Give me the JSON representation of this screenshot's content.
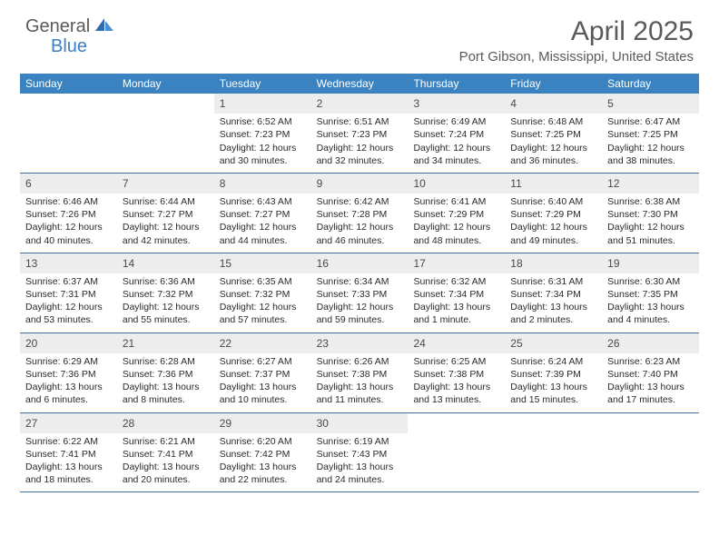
{
  "logo": {
    "part1": "General",
    "part2": "Blue"
  },
  "title": "April 2025",
  "location": "Port Gibson, Mississippi, United States",
  "colors": {
    "header_bar": "#3b83c0",
    "week_divider": "#3b6fa0",
    "daynum_bg": "#ededed",
    "text_dark": "#2a2a2a",
    "text_muted": "#5a5a5a",
    "logo_blue": "#3b7fc4"
  },
  "fonts": {
    "title_size": 30,
    "location_size": 15,
    "weekday_size": 12,
    "daynum_size": 12,
    "body_size": 10.5
  },
  "weekdays": [
    "Sunday",
    "Monday",
    "Tuesday",
    "Wednesday",
    "Thursday",
    "Friday",
    "Saturday"
  ],
  "weeks": [
    [
      {
        "num": "",
        "sunrise": "",
        "sunset": "",
        "daylight": ""
      },
      {
        "num": "",
        "sunrise": "",
        "sunset": "",
        "daylight": ""
      },
      {
        "num": "1",
        "sunrise": "Sunrise: 6:52 AM",
        "sunset": "Sunset: 7:23 PM",
        "daylight": "Daylight: 12 hours and 30 minutes."
      },
      {
        "num": "2",
        "sunrise": "Sunrise: 6:51 AM",
        "sunset": "Sunset: 7:23 PM",
        "daylight": "Daylight: 12 hours and 32 minutes."
      },
      {
        "num": "3",
        "sunrise": "Sunrise: 6:49 AM",
        "sunset": "Sunset: 7:24 PM",
        "daylight": "Daylight: 12 hours and 34 minutes."
      },
      {
        "num": "4",
        "sunrise": "Sunrise: 6:48 AM",
        "sunset": "Sunset: 7:25 PM",
        "daylight": "Daylight: 12 hours and 36 minutes."
      },
      {
        "num": "5",
        "sunrise": "Sunrise: 6:47 AM",
        "sunset": "Sunset: 7:25 PM",
        "daylight": "Daylight: 12 hours and 38 minutes."
      }
    ],
    [
      {
        "num": "6",
        "sunrise": "Sunrise: 6:46 AM",
        "sunset": "Sunset: 7:26 PM",
        "daylight": "Daylight: 12 hours and 40 minutes."
      },
      {
        "num": "7",
        "sunrise": "Sunrise: 6:44 AM",
        "sunset": "Sunset: 7:27 PM",
        "daylight": "Daylight: 12 hours and 42 minutes."
      },
      {
        "num": "8",
        "sunrise": "Sunrise: 6:43 AM",
        "sunset": "Sunset: 7:27 PM",
        "daylight": "Daylight: 12 hours and 44 minutes."
      },
      {
        "num": "9",
        "sunrise": "Sunrise: 6:42 AM",
        "sunset": "Sunset: 7:28 PM",
        "daylight": "Daylight: 12 hours and 46 minutes."
      },
      {
        "num": "10",
        "sunrise": "Sunrise: 6:41 AM",
        "sunset": "Sunset: 7:29 PM",
        "daylight": "Daylight: 12 hours and 48 minutes."
      },
      {
        "num": "11",
        "sunrise": "Sunrise: 6:40 AM",
        "sunset": "Sunset: 7:29 PM",
        "daylight": "Daylight: 12 hours and 49 minutes."
      },
      {
        "num": "12",
        "sunrise": "Sunrise: 6:38 AM",
        "sunset": "Sunset: 7:30 PM",
        "daylight": "Daylight: 12 hours and 51 minutes."
      }
    ],
    [
      {
        "num": "13",
        "sunrise": "Sunrise: 6:37 AM",
        "sunset": "Sunset: 7:31 PM",
        "daylight": "Daylight: 12 hours and 53 minutes."
      },
      {
        "num": "14",
        "sunrise": "Sunrise: 6:36 AM",
        "sunset": "Sunset: 7:32 PM",
        "daylight": "Daylight: 12 hours and 55 minutes."
      },
      {
        "num": "15",
        "sunrise": "Sunrise: 6:35 AM",
        "sunset": "Sunset: 7:32 PM",
        "daylight": "Daylight: 12 hours and 57 minutes."
      },
      {
        "num": "16",
        "sunrise": "Sunrise: 6:34 AM",
        "sunset": "Sunset: 7:33 PM",
        "daylight": "Daylight: 12 hours and 59 minutes."
      },
      {
        "num": "17",
        "sunrise": "Sunrise: 6:32 AM",
        "sunset": "Sunset: 7:34 PM",
        "daylight": "Daylight: 13 hours and 1 minute."
      },
      {
        "num": "18",
        "sunrise": "Sunrise: 6:31 AM",
        "sunset": "Sunset: 7:34 PM",
        "daylight": "Daylight: 13 hours and 2 minutes."
      },
      {
        "num": "19",
        "sunrise": "Sunrise: 6:30 AM",
        "sunset": "Sunset: 7:35 PM",
        "daylight": "Daylight: 13 hours and 4 minutes."
      }
    ],
    [
      {
        "num": "20",
        "sunrise": "Sunrise: 6:29 AM",
        "sunset": "Sunset: 7:36 PM",
        "daylight": "Daylight: 13 hours and 6 minutes."
      },
      {
        "num": "21",
        "sunrise": "Sunrise: 6:28 AM",
        "sunset": "Sunset: 7:36 PM",
        "daylight": "Daylight: 13 hours and 8 minutes."
      },
      {
        "num": "22",
        "sunrise": "Sunrise: 6:27 AM",
        "sunset": "Sunset: 7:37 PM",
        "daylight": "Daylight: 13 hours and 10 minutes."
      },
      {
        "num": "23",
        "sunrise": "Sunrise: 6:26 AM",
        "sunset": "Sunset: 7:38 PM",
        "daylight": "Daylight: 13 hours and 11 minutes."
      },
      {
        "num": "24",
        "sunrise": "Sunrise: 6:25 AM",
        "sunset": "Sunset: 7:38 PM",
        "daylight": "Daylight: 13 hours and 13 minutes."
      },
      {
        "num": "25",
        "sunrise": "Sunrise: 6:24 AM",
        "sunset": "Sunset: 7:39 PM",
        "daylight": "Daylight: 13 hours and 15 minutes."
      },
      {
        "num": "26",
        "sunrise": "Sunrise: 6:23 AM",
        "sunset": "Sunset: 7:40 PM",
        "daylight": "Daylight: 13 hours and 17 minutes."
      }
    ],
    [
      {
        "num": "27",
        "sunrise": "Sunrise: 6:22 AM",
        "sunset": "Sunset: 7:41 PM",
        "daylight": "Daylight: 13 hours and 18 minutes."
      },
      {
        "num": "28",
        "sunrise": "Sunrise: 6:21 AM",
        "sunset": "Sunset: 7:41 PM",
        "daylight": "Daylight: 13 hours and 20 minutes."
      },
      {
        "num": "29",
        "sunrise": "Sunrise: 6:20 AM",
        "sunset": "Sunset: 7:42 PM",
        "daylight": "Daylight: 13 hours and 22 minutes."
      },
      {
        "num": "30",
        "sunrise": "Sunrise: 6:19 AM",
        "sunset": "Sunset: 7:43 PM",
        "daylight": "Daylight: 13 hours and 24 minutes."
      },
      {
        "num": "",
        "sunrise": "",
        "sunset": "",
        "daylight": ""
      },
      {
        "num": "",
        "sunrise": "",
        "sunset": "",
        "daylight": ""
      },
      {
        "num": "",
        "sunrise": "",
        "sunset": "",
        "daylight": ""
      }
    ]
  ]
}
